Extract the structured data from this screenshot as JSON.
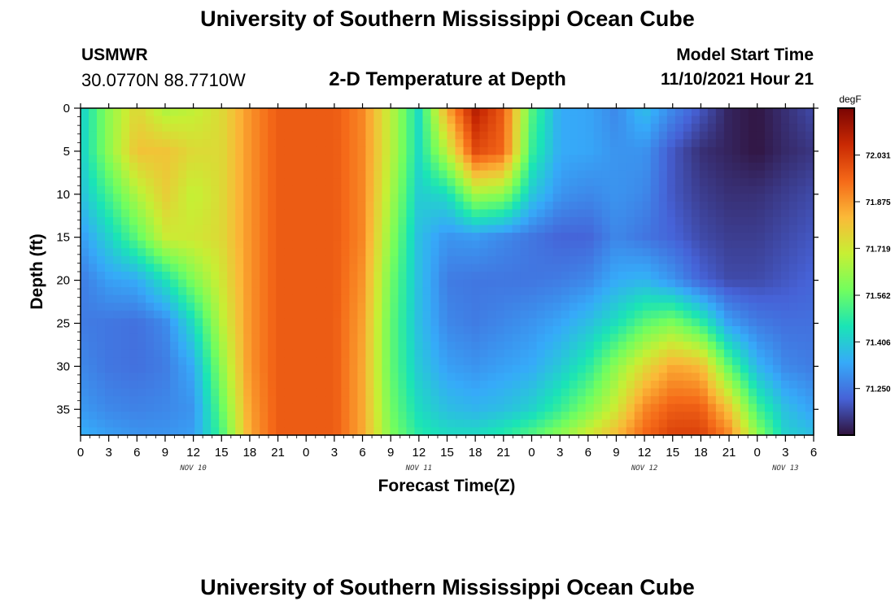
{
  "header": {
    "title": "University of Southern Mississippi Ocean Cube",
    "station": "USMWR",
    "coords": "30.0770N  88.7710W",
    "subtitle": "2-D Temperature at Depth",
    "start_label": "Model Start Time",
    "start_value": "11/10/2021 Hour 21"
  },
  "footer": {
    "title": "University of Southern Mississippi Ocean Cube"
  },
  "chart_data": {
    "type": "heatmap",
    "title": "2-D Temperature at Depth",
    "xlabel": "Forecast Time(Z)",
    "ylabel": "Depth (ft)",
    "x_unit": "forecast hour",
    "x_range": [
      0,
      78
    ],
    "x_tick_labels": [
      "0",
      "3",
      "6",
      "9",
      "12",
      "15",
      "18",
      "21",
      "0",
      "3",
      "6",
      "9",
      "12",
      "15",
      "18",
      "21",
      "0",
      "3",
      "6",
      "9",
      "12",
      "15",
      "18",
      "21",
      "0",
      "3",
      "6"
    ],
    "day_labels": [
      {
        "label": "NOV 10",
        "hour": 12
      },
      {
        "label": "NOV 11",
        "hour": 36
      },
      {
        "label": "NOV 12",
        "hour": 60
      },
      {
        "label": "NOV 13",
        "hour": 75
      }
    ],
    "y_range": [
      0,
      38
    ],
    "y_ticks": [
      0,
      5,
      10,
      15,
      20,
      25,
      30,
      35
    ],
    "colorbar": {
      "unit": "degF",
      "range": [
        71.094,
        72.188
      ],
      "ticks": [
        72.031,
        71.875,
        71.719,
        71.562,
        71.406,
        71.25
      ],
      "colors": [
        "#30123b",
        "#4662d7",
        "#36aaf9",
        "#1ae4b6",
        "#72fe5e",
        "#c7ef34",
        "#fbb938",
        "#f56918",
        "#c92903",
        "#7a0403"
      ]
    },
    "depths": [
      0,
      5,
      10,
      15,
      20,
      25,
      30,
      35,
      38
    ],
    "hours": [
      0,
      3,
      6,
      9,
      12,
      15,
      18,
      21,
      24,
      27,
      30,
      33,
      36,
      39,
      42,
      45,
      48,
      51,
      54,
      57,
      60,
      63,
      66,
      69,
      72,
      75,
      78
    ],
    "values": [
      [
        71.41,
        71.62,
        71.76,
        71.66,
        71.69,
        71.75,
        71.88,
        71.97,
        71.97,
        71.97,
        71.9,
        71.69,
        71.44,
        71.85,
        72.1,
        71.97,
        71.54,
        71.34,
        71.33,
        71.28,
        71.38,
        71.28,
        71.2,
        71.12,
        71.1,
        71.14,
        71.18
      ],
      [
        71.41,
        71.62,
        71.8,
        71.8,
        71.75,
        71.75,
        71.88,
        71.97,
        71.97,
        71.97,
        71.9,
        71.69,
        71.44,
        71.69,
        72.0,
        71.95,
        71.5,
        71.34,
        71.33,
        71.3,
        71.3,
        71.2,
        71.14,
        71.12,
        71.1,
        71.13,
        71.15
      ],
      [
        71.38,
        71.52,
        71.67,
        71.78,
        71.69,
        71.75,
        71.88,
        71.97,
        71.97,
        71.97,
        71.9,
        71.66,
        71.41,
        71.44,
        71.65,
        71.62,
        71.4,
        71.3,
        71.28,
        71.3,
        71.28,
        71.2,
        71.16,
        71.14,
        71.14,
        71.16,
        71.18
      ],
      [
        71.31,
        71.42,
        71.55,
        71.71,
        71.72,
        71.75,
        71.88,
        71.97,
        71.97,
        71.97,
        71.9,
        71.62,
        71.38,
        71.3,
        71.31,
        71.28,
        71.25,
        71.22,
        71.22,
        71.28,
        71.25,
        71.22,
        71.18,
        71.16,
        71.16,
        71.18,
        71.2
      ],
      [
        71.26,
        71.32,
        71.34,
        71.45,
        71.6,
        71.72,
        71.88,
        71.97,
        71.97,
        71.97,
        71.88,
        71.58,
        71.38,
        71.26,
        71.25,
        71.25,
        71.25,
        71.26,
        71.28,
        71.34,
        71.36,
        71.3,
        71.22,
        71.18,
        71.18,
        71.2,
        71.22
      ],
      [
        71.26,
        71.25,
        71.24,
        71.28,
        71.44,
        71.68,
        71.88,
        71.97,
        71.97,
        71.97,
        71.86,
        71.56,
        71.38,
        71.28,
        71.26,
        71.28,
        71.3,
        71.33,
        71.38,
        71.45,
        71.55,
        71.6,
        71.5,
        71.32,
        71.26,
        71.24,
        71.24
      ],
      [
        71.28,
        71.25,
        71.24,
        71.26,
        71.34,
        71.62,
        71.88,
        71.97,
        71.97,
        71.97,
        71.85,
        71.56,
        71.4,
        71.32,
        71.3,
        71.32,
        71.34,
        71.4,
        71.48,
        71.62,
        71.75,
        71.85,
        71.82,
        71.55,
        71.36,
        71.28,
        71.26
      ],
      [
        71.31,
        71.28,
        71.27,
        71.28,
        71.3,
        71.56,
        71.86,
        71.97,
        71.97,
        71.97,
        71.85,
        71.58,
        71.44,
        71.38,
        71.36,
        71.38,
        71.42,
        71.5,
        71.6,
        71.72,
        71.9,
        71.97,
        71.97,
        71.8,
        71.52,
        71.38,
        71.32
      ],
      [
        71.35,
        71.32,
        71.3,
        71.3,
        71.32,
        71.52,
        71.85,
        71.97,
        71.97,
        71.97,
        71.85,
        71.6,
        71.48,
        71.44,
        71.44,
        71.48,
        71.54,
        71.62,
        71.72,
        71.82,
        71.95,
        72.02,
        72.02,
        71.9,
        71.62,
        71.42,
        71.38
      ]
    ]
  }
}
